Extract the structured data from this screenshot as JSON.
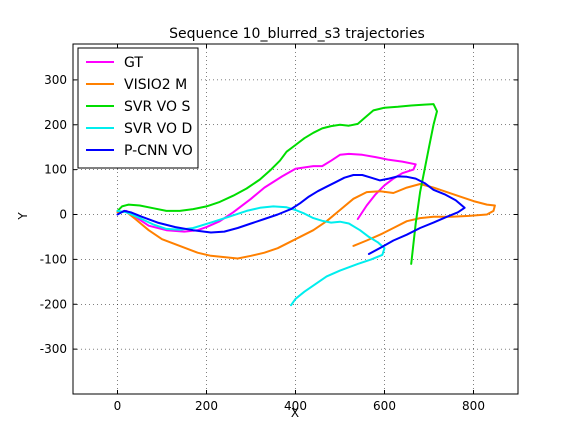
{
  "chart_data": {
    "type": "line",
    "title": "Sequence 10_blurred_s3 trajectories",
    "xlabel": "X",
    "ylabel": "Y",
    "xlim": [
      -100,
      900
    ],
    "ylim": [
      -400,
      380
    ],
    "xticks": [
      0,
      200,
      400,
      600,
      800
    ],
    "yticks": [
      -300,
      -200,
      -100,
      0,
      100,
      200,
      300
    ],
    "grid": true,
    "legend_position": "top-left",
    "series": [
      {
        "name": "GT",
        "color": "#ff00ff",
        "points": [
          [
            0,
            5
          ],
          [
            20,
            8
          ],
          [
            40,
            -5
          ],
          [
            70,
            -25
          ],
          [
            110,
            -35
          ],
          [
            150,
            -38
          ],
          [
            180,
            -35
          ],
          [
            200,
            -28
          ],
          [
            230,
            -15
          ],
          [
            260,
            5
          ],
          [
            300,
            35
          ],
          [
            330,
            60
          ],
          [
            370,
            85
          ],
          [
            400,
            102
          ],
          [
            440,
            108
          ],
          [
            460,
            108
          ],
          [
            480,
            120
          ],
          [
            500,
            133
          ],
          [
            520,
            135
          ],
          [
            550,
            133
          ],
          [
            580,
            128
          ],
          [
            610,
            122
          ],
          [
            640,
            118
          ],
          [
            670,
            112
          ],
          [
            665,
            100
          ],
          [
            640,
            92
          ],
          [
            620,
            80
          ],
          [
            600,
            65
          ],
          [
            580,
            45
          ],
          [
            560,
            20
          ],
          [
            540,
            -10
          ]
        ]
      },
      {
        "name": "VISIO2 M",
        "color": "#ff8000",
        "points": [
          [
            0,
            5
          ],
          [
            20,
            6
          ],
          [
            40,
            -10
          ],
          [
            70,
            -35
          ],
          [
            100,
            -55
          ],
          [
            140,
            -70
          ],
          [
            180,
            -85
          ],
          [
            210,
            -92
          ],
          [
            240,
            -95
          ],
          [
            270,
            -98
          ],
          [
            300,
            -92
          ],
          [
            330,
            -85
          ],
          [
            360,
            -75
          ],
          [
            400,
            -55
          ],
          [
            440,
            -35
          ],
          [
            470,
            -15
          ],
          [
            500,
            10
          ],
          [
            530,
            35
          ],
          [
            560,
            50
          ],
          [
            590,
            52
          ],
          [
            620,
            48
          ],
          [
            650,
            60
          ],
          [
            680,
            68
          ],
          [
            710,
            60
          ],
          [
            740,
            50
          ],
          [
            770,
            40
          ],
          [
            800,
            30
          ],
          [
            830,
            22
          ],
          [
            848,
            20
          ],
          [
            845,
            8
          ],
          [
            830,
            0
          ],
          [
            790,
            -3
          ],
          [
            750,
            -5
          ],
          [
            710,
            -5
          ],
          [
            680,
            -8
          ],
          [
            650,
            -15
          ],
          [
            620,
            -30
          ],
          [
            590,
            -45
          ],
          [
            560,
            -58
          ],
          [
            530,
            -70
          ]
        ]
      },
      {
        "name": "SVR VO S",
        "color": "#00dd00",
        "points": [
          [
            0,
            8
          ],
          [
            10,
            18
          ],
          [
            25,
            22
          ],
          [
            50,
            20
          ],
          [
            80,
            14
          ],
          [
            110,
            8
          ],
          [
            140,
            8
          ],
          [
            170,
            12
          ],
          [
            200,
            18
          ],
          [
            230,
            28
          ],
          [
            260,
            42
          ],
          [
            290,
            58
          ],
          [
            320,
            78
          ],
          [
            345,
            100
          ],
          [
            365,
            120
          ],
          [
            380,
            140
          ],
          [
            400,
            155
          ],
          [
            420,
            170
          ],
          [
            440,
            182
          ],
          [
            460,
            192
          ],
          [
            480,
            197
          ],
          [
            500,
            200
          ],
          [
            520,
            198
          ],
          [
            540,
            202
          ],
          [
            555,
            215
          ],
          [
            575,
            232
          ],
          [
            600,
            238
          ],
          [
            630,
            240
          ],
          [
            660,
            243
          ],
          [
            690,
            245
          ],
          [
            710,
            246
          ],
          [
            718,
            230
          ],
          [
            710,
            200
          ],
          [
            700,
            150
          ],
          [
            690,
            100
          ],
          [
            680,
            50
          ],
          [
            670,
            -20
          ],
          [
            660,
            -110
          ]
        ]
      },
      {
        "name": "SVR VO D",
        "color": "#00eeee",
        "points": [
          [
            0,
            8
          ],
          [
            20,
            5
          ],
          [
            50,
            -8
          ],
          [
            80,
            -22
          ],
          [
            110,
            -32
          ],
          [
            140,
            -34
          ],
          [
            170,
            -30
          ],
          [
            210,
            -18
          ],
          [
            250,
            -5
          ],
          [
            290,
            8
          ],
          [
            320,
            15
          ],
          [
            350,
            18
          ],
          [
            380,
            16
          ],
          [
            400,
            10
          ],
          [
            420,
            2
          ],
          [
            440,
            -8
          ],
          [
            460,
            -14
          ],
          [
            480,
            -18
          ],
          [
            500,
            -16
          ],
          [
            520,
            -20
          ],
          [
            545,
            -35
          ],
          [
            565,
            -50
          ],
          [
            585,
            -62
          ],
          [
            600,
            -75
          ],
          [
            595,
            -90
          ],
          [
            570,
            -100
          ],
          [
            540,
            -110
          ],
          [
            500,
            -125
          ],
          [
            470,
            -138
          ],
          [
            445,
            -155
          ],
          [
            420,
            -172
          ],
          [
            400,
            -188
          ],
          [
            390,
            -202
          ]
        ]
      },
      {
        "name": "P-CNN VO",
        "color": "#0000ff",
        "points": [
          [
            0,
            0
          ],
          [
            15,
            8
          ],
          [
            30,
            5
          ],
          [
            55,
            -5
          ],
          [
            90,
            -18
          ],
          [
            130,
            -28
          ],
          [
            170,
            -35
          ],
          [
            210,
            -40
          ],
          [
            240,
            -38
          ],
          [
            270,
            -30
          ],
          [
            300,
            -20
          ],
          [
            330,
            -10
          ],
          [
            360,
            0
          ],
          [
            390,
            12
          ],
          [
            410,
            25
          ],
          [
            430,
            40
          ],
          [
            450,
            52
          ],
          [
            470,
            62
          ],
          [
            490,
            72
          ],
          [
            510,
            82
          ],
          [
            530,
            88
          ],
          [
            550,
            88
          ],
          [
            570,
            82
          ],
          [
            590,
            76
          ],
          [
            610,
            80
          ],
          [
            630,
            85
          ],
          [
            650,
            84
          ],
          [
            670,
            80
          ],
          [
            690,
            70
          ],
          [
            710,
            55
          ],
          [
            735,
            45
          ],
          [
            760,
            32
          ],
          [
            780,
            15
          ],
          [
            765,
            5
          ],
          [
            740,
            -5
          ],
          [
            710,
            -18
          ],
          [
            680,
            -30
          ],
          [
            650,
            -45
          ],
          [
            620,
            -58
          ],
          [
            595,
            -72
          ],
          [
            565,
            -88
          ]
        ]
      }
    ]
  }
}
